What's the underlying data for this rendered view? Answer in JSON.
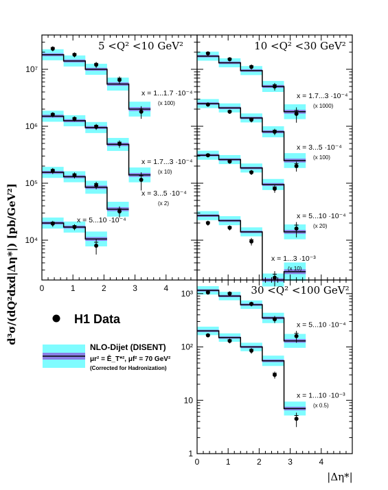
{
  "figure": {
    "y_axis_title": "d³σ/(dQ²dxd|Δη*|) [pb/GeV²]",
    "x_axis_title": "|Δη*|"
  },
  "legend": {
    "data_label": "H1 Data",
    "nlo_label": "NLO-Dijet (DISENT)",
    "scale_label": "μr² = Ē_T*², μf² = 70 GeV²",
    "correction_label": "(Corrected for Hadronization)"
  },
  "colors": {
    "band_outer": "#7ffcff",
    "band_inner": "#8a7fe6",
    "line": "#000000",
    "marker": "#000000"
  },
  "chart_data": [
    {
      "type": "step-histogram",
      "title": "5 <Q² <10 GeV²",
      "xlim": [
        0,
        5
      ],
      "ylim": [
        2000,
        40000000
      ],
      "log_y": true,
      "x_ticks": [
        "0",
        "1",
        "2",
        "3",
        "4"
      ],
      "y_ticks": [
        {
          "value": 10000,
          "label": "10⁴"
        },
        {
          "value": 100000,
          "label": "10⁵"
        },
        {
          "value": 1000000,
          "label": "10⁶"
        },
        {
          "value": 10000000,
          "label": "10⁷"
        }
      ],
      "bin_edges": [
        0,
        0.7,
        1.4,
        2.1,
        2.8,
        3.5
      ],
      "series": [
        {
          "label": "x = 1...1.7 ·10⁻⁴",
          "scale": "(x 100)",
          "nlo": [
            18000000,
            14000000,
            10000000,
            5500000,
            2000000
          ],
          "band_outer": [
            1.25,
            1.25,
            1.25,
            1.3,
            1.35
          ],
          "band_inner": [
            1.06,
            1.06,
            1.06,
            1.07,
            1.08
          ],
          "data_x": [
            0.35,
            1.05,
            1.75,
            2.5,
            3.2
          ],
          "data_y": [
            23000000,
            18000000,
            12000000,
            6500000,
            1800000
          ],
          "err": [
            0.1,
            0.1,
            0.12,
            0.15,
            0.25
          ]
        },
        {
          "label": "x = 1.7...3 ·10⁻⁴",
          "scale": "(x 10)",
          "nlo": [
            1500000,
            1250000,
            950000,
            480000,
            140000
          ],
          "band_outer": [
            1.25,
            1.25,
            1.25,
            1.3,
            1.35
          ],
          "band_inner": [
            1.06,
            1.06,
            1.06,
            1.07,
            1.08
          ],
          "data_x": [
            0.35,
            1.05,
            1.75,
            2.5,
            3.2
          ],
          "data_y": [
            1600000,
            1350000,
            980000,
            490000,
            115000
          ],
          "err": [
            0.1,
            0.1,
            0.12,
            0.15,
            0.35
          ]
        },
        {
          "label": "x = 3...5 ·10⁻⁴",
          "scale": "(x 2)",
          "nlo": [
            155000,
            130000,
            85000,
            35000
          ],
          "band_outer": [
            1.25,
            1.25,
            1.3,
            1.35
          ],
          "band_inner": [
            1.06,
            1.06,
            1.07,
            1.08
          ],
          "data_x": [
            0.35,
            1.05,
            1.75,
            2.5
          ],
          "data_y": [
            165000,
            138000,
            92000,
            32000
          ],
          "err": [
            0.12,
            0.12,
            0.15,
            0.22
          ]
        },
        {
          "label": "x = 5...10 ·10⁻⁴",
          "scale": "",
          "nlo": [
            20000,
            17000,
            10500
          ],
          "band_outer": [
            1.25,
            1.25,
            1.35
          ],
          "band_inner": [
            1.06,
            1.06,
            1.08
          ],
          "data_x": [
            0.35,
            1.05,
            1.75
          ],
          "data_y": [
            19500,
            17000,
            8000
          ],
          "err": [
            0.12,
            0.12,
            0.3
          ]
        }
      ]
    },
    {
      "type": "step-histogram",
      "title": "10 <Q² <30 GeV²",
      "xlim": [
        0,
        5
      ],
      "ylim": [
        2000,
        40000000
      ],
      "log_y": true,
      "x_ticks": [],
      "y_ticks": [],
      "bin_edges": [
        0,
        0.7,
        1.4,
        2.1,
        2.8,
        3.5
      ],
      "series": [
        {
          "label": "x = 1.7...3 ·10⁻⁴",
          "scale": "(x 1000)",
          "nlo": [
            17000000,
            13000000,
            9500000,
            5000000,
            1800000
          ],
          "band_outer": [
            1.2,
            1.2,
            1.2,
            1.25,
            1.35
          ],
          "band_inner": [
            1.05,
            1.05,
            1.05,
            1.06,
            1.08
          ],
          "data_x": [
            0.35,
            1.05,
            1.75,
            2.5,
            3.2
          ],
          "data_y": [
            19000000,
            15000000,
            11000000,
            5000000,
            1650000
          ],
          "err": [
            0.08,
            0.08,
            0.1,
            0.15,
            0.3
          ]
        },
        {
          "label": "x = 3...5 ·10⁻⁴",
          "scale": "(x 100)",
          "nlo": [
            2500000,
            2100000,
            1400000,
            800000,
            250000
          ],
          "band_outer": [
            1.2,
            1.2,
            1.2,
            1.25,
            1.35
          ],
          "band_inner": [
            1.05,
            1.05,
            1.05,
            1.06,
            1.08
          ],
          "data_x": [
            0.35,
            1.05,
            1.75,
            2.5,
            3.2
          ],
          "data_y": [
            2400000,
            1800000,
            1300000,
            800000,
            200000
          ],
          "err": [
            0.08,
            0.08,
            0.1,
            0.13,
            0.2
          ]
        },
        {
          "label": "x = 5...10 ·10⁻⁴",
          "scale": "(x 20)",
          "nlo": [
            310000,
            260000,
            185000,
            95000,
            14000
          ],
          "band_outer": [
            1.2,
            1.2,
            1.2,
            1.25,
            1.35
          ],
          "band_inner": [
            1.05,
            1.05,
            1.05,
            1.06,
            1.08
          ],
          "data_x": [
            0.35,
            1.05,
            1.75,
            2.5,
            3.2
          ],
          "data_y": [
            310000,
            240000,
            155000,
            80000,
            16000
          ],
          "err": [
            0.08,
            0.08,
            0.1,
            0.15,
            0.3
          ]
        },
        {
          "label": "x = 1...3 ·10⁻³",
          "scale": "(x 10)",
          "nlo": [
            27000,
            22000,
            14000,
            2000,
            2800
          ],
          "band_outer": [
            1.2,
            1.2,
            1.2,
            1.3,
            1.45
          ],
          "band_inner": [
            1.05,
            1.05,
            1.05,
            1.07,
            1.1
          ],
          "data_x": [
            0.35,
            1.05,
            1.75,
            2.5
          ],
          "data_y": [
            20000,
            16500,
            9500,
            2200
          ],
          "err": [
            0.1,
            0.1,
            0.15,
            0.3
          ]
        }
      ]
    },
    {
      "type": "step-histogram",
      "title": "30 <Q² <100 GeV²",
      "xlim": [
        0,
        5
      ],
      "ylim": [
        1,
        1800
      ],
      "log_y": true,
      "x_ticks": [
        "0",
        "1",
        "2",
        "3",
        "4"
      ],
      "y_ticks": [
        {
          "value": 1,
          "label": "1"
        },
        {
          "value": 10,
          "label": "10"
        },
        {
          "value": 100,
          "label": "10²"
        },
        {
          "value": 1000,
          "label": "10³"
        }
      ],
      "bin_edges": [
        0,
        0.7,
        1.4,
        2.1,
        2.8,
        3.5
      ],
      "series": [
        {
          "label": "x = 5...10 ·10⁻⁴",
          "scale": "",
          "nlo": [
            1150,
            900,
            620,
            350,
            130
          ],
          "band_outer": [
            1.2,
            1.2,
            1.2,
            1.25,
            1.35
          ],
          "band_inner": [
            1.05,
            1.05,
            1.05,
            1.06,
            1.08
          ],
          "data_x": [
            0.35,
            1.05,
            1.75,
            2.5,
            3.2
          ],
          "data_y": [
            1050,
            1000,
            640,
            330,
            160
          ],
          "err": [
            0.08,
            0.1,
            0.1,
            0.15,
            0.25
          ]
        },
        {
          "label": "x = 1...10 ·10⁻³",
          "scale": "(x 0.5)",
          "nlo": [
            200,
            150,
            100,
            55,
            7
          ],
          "band_outer": [
            1.2,
            1.2,
            1.2,
            1.25,
            1.35
          ],
          "band_inner": [
            1.05,
            1.05,
            1.05,
            1.06,
            1.08
          ],
          "data_x": [
            0.35,
            1.05,
            1.75,
            2.5,
            3.2
          ],
          "data_y": [
            165,
            130,
            85,
            30,
            4.5
          ],
          "err": [
            0.08,
            0.1,
            0.12,
            0.15,
            0.3
          ]
        }
      ]
    }
  ]
}
